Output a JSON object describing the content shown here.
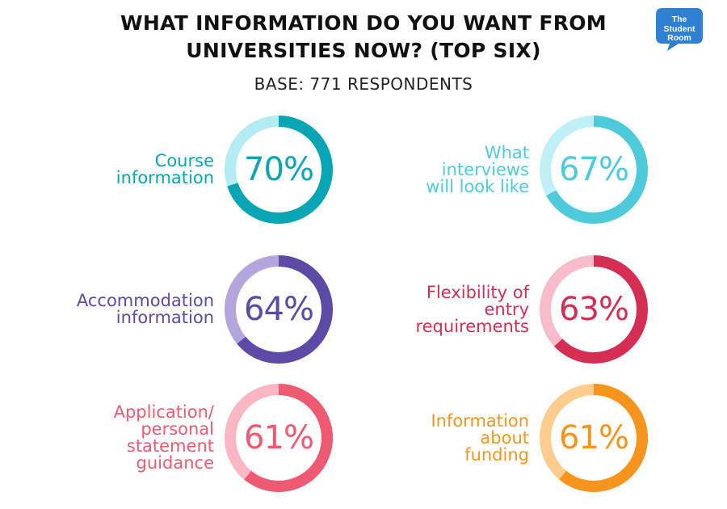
{
  "title_lines": [
    "WHAT INFORMATION DO YOU WANT FROM",
    "UNIVERSITIES NOW? (TOP SIX)"
  ],
  "subtitle": "BASE: 771 RESPONDENTS",
  "logo": {
    "lines": [
      "The",
      "Student",
      "Room"
    ],
    "color": "#2f7fd3"
  },
  "chart_data": {
    "type": "donut",
    "title": "WHAT INFORMATION DO YOU WANT FROM UNIVERSITIES NOW? (TOP SIX)",
    "subtitle": "BASE: 771 RESPONDENTS",
    "unit": "%",
    "items": [
      {
        "label_lines": [
          "Course",
          "information"
        ],
        "value": 70,
        "value_label": "70%",
        "color": "#0aa5b5",
        "track_color": "#b3ecf3"
      },
      {
        "label_lines": [
          "What",
          "interviews",
          "will look like"
        ],
        "value": 67,
        "value_label": "67%",
        "color": "#4dcbdc",
        "track_color": "#bff0f6"
      },
      {
        "label_lines": [
          "Accommodation",
          "information"
        ],
        "value": 64,
        "value_label": "64%",
        "color": "#5b4aa6",
        "track_color": "#b2a6dd"
      },
      {
        "label_lines": [
          "Flexibility of",
          "entry",
          "requirements"
        ],
        "value": 63,
        "value_label": "63%",
        "color": "#d42e55",
        "track_color": "#f6bccb"
      },
      {
        "label_lines": [
          "Application/",
          "personal",
          "statement",
          "guidance"
        ],
        "value": 61,
        "value_label": "61%",
        "color": "#ee5a72",
        "track_color": "#f9b6c3"
      },
      {
        "label_lines": [
          "Information",
          "about",
          "funding"
        ],
        "value": 61,
        "value_label": "61%",
        "color": "#f7941d",
        "track_color": "#fccd8f"
      }
    ]
  }
}
